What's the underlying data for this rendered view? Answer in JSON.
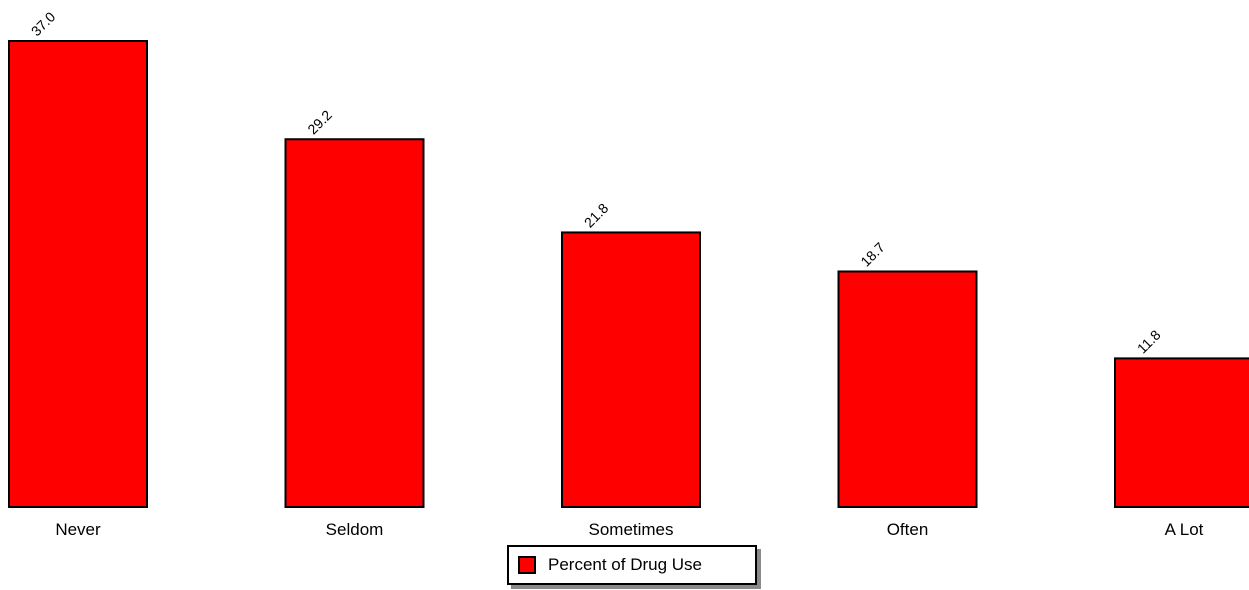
{
  "chart_data": {
    "type": "bar",
    "categories": [
      "Never",
      "Seldom",
      "Sometimes",
      "Often",
      "A Lot"
    ],
    "series": [
      {
        "name": "Percent of Drug Use",
        "values": [
          37.0,
          29.2,
          21.8,
          18.7,
          11.8
        ],
        "value_labels": [
          "37.0",
          "29.2",
          "21.8",
          "18.7",
          "11.8"
        ],
        "color": "#ff0000"
      }
    ],
    "ylim": [
      0,
      37.0
    ],
    "grid": false,
    "legend_position": "bottom-center"
  }
}
